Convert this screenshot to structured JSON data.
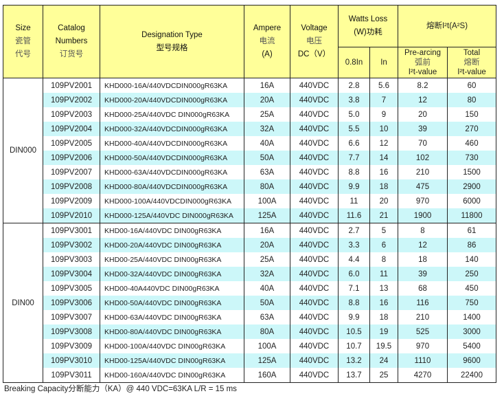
{
  "header": {
    "size": [
      "Size",
      "瓷管",
      "代号"
    ],
    "catalog": [
      "Catalog",
      "Numbers",
      "订货号"
    ],
    "designation": [
      "Designation Type",
      "型号规格"
    ],
    "ampere": [
      "Ampere",
      "电流",
      "(A)"
    ],
    "voltage": [
      "Voltage",
      "电压",
      "DC（V）"
    ],
    "watts_loss": [
      "Watts Loss",
      "(W)功耗"
    ],
    "watts_sub": [
      "0.8In",
      "In"
    ],
    "i2t_title": "熔断I²t(A²S)",
    "prearcing": [
      "Pre-arcing",
      "弧前",
      "I²t-value"
    ],
    "total": [
      "Total",
      "熔断",
      "I²t-value"
    ]
  },
  "groups": [
    {
      "size": "DIN000",
      "rows": [
        [
          "109PV2001",
          "KHD000-16A/440VDCDIN000gR63KA",
          "16A",
          "440VDC",
          "2.8",
          "5.6",
          "8.2",
          "60"
        ],
        [
          "109PV2002",
          "KHD000-20A/440VDCDIN000gR63KA",
          "20A",
          "440VDC",
          "3.8",
          "7",
          "12",
          "80"
        ],
        [
          "109PV2003",
          "KHD000-25A/440VDC DIN000gR63KA",
          "25A",
          "440VDC",
          "5.0",
          "9",
          "20",
          "150"
        ],
        [
          "109PV2004",
          "KHD000-32A/440VDCDIN000gR63KA",
          "32A",
          "440VDC",
          "5.5",
          "10",
          "39",
          "270"
        ],
        [
          "109PV2005",
          "KHD000-40A/440VDCDIN000gR63KA",
          "40A",
          "440VDC",
          "6.6",
          "12",
          "70",
          "460"
        ],
        [
          "109PV2006",
          "KHD000-50A/440VDCDIN000gR63KA",
          "50A",
          "440VDC",
          "7.7",
          "14",
          "102",
          "730"
        ],
        [
          "109PV2007",
          "KHD000-63A/440VDCDIN000gR63KA",
          "63A",
          "440VDC",
          "8.8",
          "16",
          "210",
          "1500"
        ],
        [
          "109PV2008",
          "KHD000-80A/440VDCDIN000gR63KA",
          "80A",
          "440VDC",
          "9.9",
          "18",
          "475",
          "2900"
        ],
        [
          "109PV2009",
          "KHD000-100A/440VDCDIN000gR63KA",
          "100A",
          "440VDC",
          "11",
          "20",
          "970",
          "6000"
        ],
        [
          "109PV2010",
          "KHD000-125A/440VDC DIN000gR63KA",
          "125A",
          "440VDC",
          "11.6",
          "21",
          "1900",
          "11800"
        ]
      ]
    },
    {
      "size": "DIN00",
      "rows": [
        [
          "109PV3001",
          "KHD00-16A/440VDC DIN00gR63KA",
          "16A",
          "440VDC",
          "2.7",
          "5",
          "8",
          "61"
        ],
        [
          "109PV3002",
          "KHD00-20A/440VDC DIN00gR63KA",
          "20A",
          "440VDC",
          "3.3",
          "6",
          "12",
          "86"
        ],
        [
          "109PV3003",
          "KHD00-25A/440VDC DIN00gR63KA",
          "25A",
          "440VDC",
          "4.4",
          "8",
          "18",
          "140"
        ],
        [
          "109PV3004",
          "KHD00-32A/440VDC DIN00gR63KA",
          "32A",
          "440VDC",
          "6.0",
          "11",
          "39",
          "250"
        ],
        [
          "109PV3005",
          "KHD00-40A440VDC DIN00gR63KA",
          "40A",
          "440VDC",
          "7.1",
          "13",
          "68",
          "450"
        ],
        [
          "109PV3006",
          "KHD00-50A/440VDC DIN00gR63KA",
          "50A",
          "440VDC",
          "8.8",
          "16",
          "116",
          "750"
        ],
        [
          "109PV3007",
          "KHD00-63A/440VDC DIN00gR63KA",
          "63A",
          "440VDC",
          "9.9",
          "18",
          "210",
          "1400"
        ],
        [
          "109PV3008",
          "KHD00-80A/440VDC DIN00gR63KA",
          "80A",
          "440VDC",
          "10.5",
          "19",
          "525",
          "3000"
        ],
        [
          "109PV3009",
          "KHD00-100A/440VDC DIN00gR63KA",
          "100A",
          "440VDC",
          "10.7",
          "19.5",
          "970",
          "5400"
        ],
        [
          "109PV3010",
          "KHD00-125A/440VDC DIN00gR63KA",
          "125A",
          "440VDC",
          "13.2",
          "24",
          "1110",
          "9600"
        ],
        [
          "109PV3011",
          "KHD00-160A/440VDC DIN00gR63KA",
          "160A",
          "440VDC",
          "13.7",
          "25",
          "4270",
          "22400"
        ]
      ]
    }
  ],
  "footnote": "Breaking Capacity分断能力（KA）@ 440 VDC=63KA    L/R = 15 ms",
  "colors": {
    "header_bg": "#ffff99",
    "stripe_bg": "#ccf7f9",
    "border": "#222222"
  }
}
